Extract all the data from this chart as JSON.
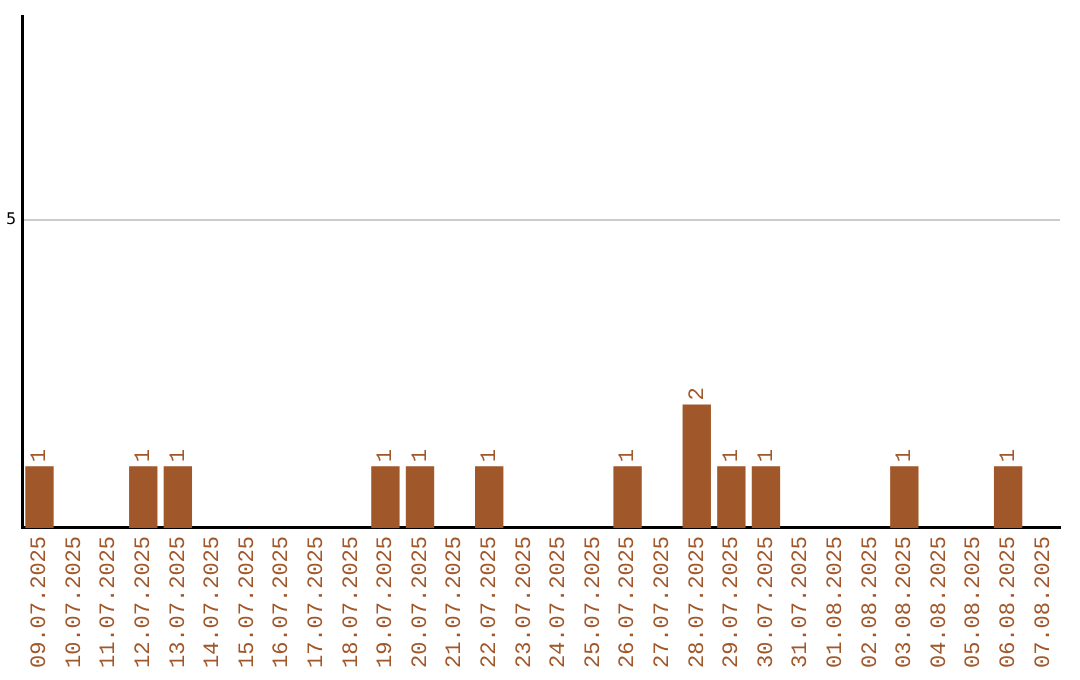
{
  "chart_data": {
    "type": "bar",
    "categories": [
      "09.07.2025",
      "10.07.2025",
      "11.07.2025",
      "12.07.2025",
      "13.07.2025",
      "14.07.2025",
      "15.07.2025",
      "16.07.2025",
      "17.07.2025",
      "18.07.2025",
      "19.07.2025",
      "20.07.2025",
      "21.07.2025",
      "22.07.2025",
      "23.07.2025",
      "24.07.2025",
      "25.07.2025",
      "26.07.2025",
      "27.07.2025",
      "28.07.2025",
      "29.07.2025",
      "30.07.2025",
      "31.07.2025",
      "01.08.2025",
      "02.08.2025",
      "03.08.2025",
      "04.08.2025",
      "05.08.2025",
      "06.08.2025",
      "07.08.2025"
    ],
    "values": [
      1,
      0,
      0,
      1,
      1,
      0,
      0,
      0,
      0,
      0,
      1,
      1,
      0,
      1,
      0,
      0,
      0,
      1,
      0,
      2,
      1,
      1,
      0,
      0,
      0,
      1,
      0,
      0,
      1,
      0
    ],
    "value_labels": [
      "1",
      null,
      null,
      "1",
      "1",
      null,
      null,
      null,
      null,
      null,
      "1",
      "1",
      null,
      "1",
      null,
      null,
      null,
      "1",
      null,
      "2",
      "1",
      "1",
      null,
      null,
      null,
      "1",
      null,
      null,
      "1",
      null
    ],
    "color": "#a0572a",
    "ylim": [
      0,
      8.3
    ],
    "yticks": [
      5
    ],
    "grid": "y",
    "legend": false
  }
}
